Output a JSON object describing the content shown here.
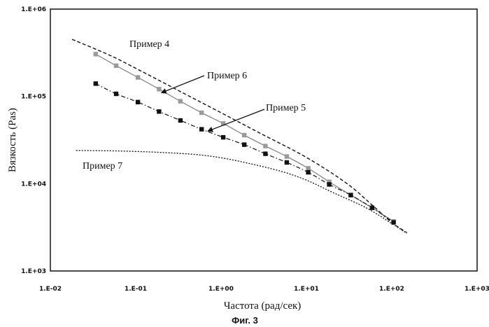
{
  "chart_data": {
    "type": "line",
    "x_scale": "log",
    "y_scale": "log",
    "xlim": [
      0.01,
      1000
    ],
    "ylim": [
      1000,
      1000000
    ],
    "xlabel": "Частота (рад/сек)",
    "ylabel": "Вязкость (Pas)",
    "caption": "Фиг. 3",
    "x_ticks": [
      "1.E-02",
      "1.E-01",
      "1.E+00",
      "1.E+01",
      "1.E+02",
      "1.E+03"
    ],
    "y_ticks": [
      "1.E+03",
      "1.E+04",
      "1.E+05",
      "1.E+06"
    ],
    "grid": false,
    "series": [
      {
        "name": "Пример 4",
        "style": "dashed",
        "color": "#111111",
        "x": [
          0.018,
          0.05,
          0.1,
          0.3,
          1,
          3,
          10,
          30,
          60,
          100,
          150
        ],
        "y": [
          450000,
          295000,
          210000,
          120000,
          65000,
          37000,
          20000,
          10000,
          5600,
          3600,
          2750
        ]
      },
      {
        "name": "Пример 6",
        "style": "solid-grey-squares",
        "color": "#888888",
        "marker_color": "#9a9a9a",
        "x": [
          0.034,
          0.059,
          0.106,
          0.188,
          0.334,
          0.592,
          1.06,
          1.87,
          3.31,
          5.88,
          10.5,
          18.5,
          33.1,
          58.8,
          105
        ],
        "y": [
          305000,
          225000,
          165000,
          121000,
          88000,
          65000,
          49000,
          36000,
          27000,
          20500,
          15000,
          10500,
          7400,
          5300,
          3700
        ]
      },
      {
        "name": "Пример 5",
        "style": "dash-dot-black-squares",
        "color": "#111111",
        "marker_color": "#111111",
        "x": [
          0.034,
          0.059,
          0.106,
          0.188,
          0.334,
          0.592,
          1.06,
          1.87,
          3.31,
          5.88,
          10.5,
          18.5,
          33.1,
          58.8,
          105
        ],
        "y": [
          140000,
          107000,
          86000,
          67000,
          53000,
          42000,
          34000,
          28000,
          22000,
          17500,
          13500,
          9800,
          7400,
          5300,
          3600
        ]
      },
      {
        "name": "Пример 7",
        "style": "dotted",
        "color": "#111111",
        "x": [
          0.02,
          0.05,
          0.1,
          0.2,
          0.5,
          1,
          2,
          5,
          10,
          20,
          50,
          100,
          150
        ],
        "y": [
          24000,
          23800,
          23400,
          22800,
          21600,
          19800,
          17300,
          13900,
          11000,
          8000,
          5300,
          3500,
          2700
        ]
      }
    ],
    "annotations": [
      {
        "text": "Пример 4",
        "series": "Пример 4",
        "arrow": false
      },
      {
        "text": "Пример 6",
        "series": "Пример 6",
        "arrow": true,
        "arrow_to": [
          0.2,
          110000
        ]
      },
      {
        "text": "Пример 5",
        "series": "Пример 5",
        "arrow": true,
        "arrow_to": [
          0.7,
          40000
        ]
      },
      {
        "text": "Пример 7",
        "series": "Пример 7",
        "arrow": false
      }
    ]
  }
}
